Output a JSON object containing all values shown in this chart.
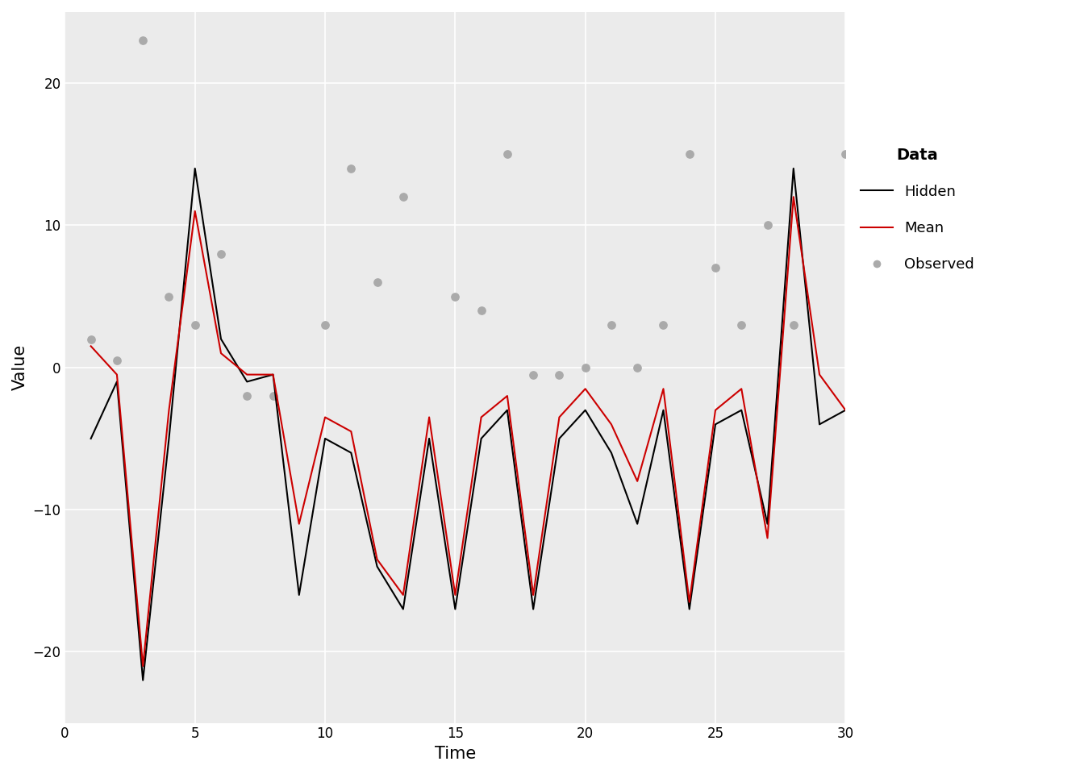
{
  "hidden_x": [
    1,
    2,
    3,
    4,
    5,
    6,
    7,
    8,
    9,
    10,
    11,
    12,
    13,
    14,
    15,
    16,
    17,
    18,
    19,
    20,
    21,
    22,
    23,
    24,
    25,
    26,
    27,
    28,
    29,
    30
  ],
  "hidden_y": [
    -5,
    -1,
    -22,
    -5,
    14,
    2,
    -1,
    -0.5,
    -16,
    -5,
    -6,
    -14,
    -17,
    -5,
    -17,
    -5,
    -3,
    -17,
    -5,
    -3,
    -6,
    -11,
    -3,
    -17,
    -4,
    -3,
    -11,
    14,
    -4,
    -3
  ],
  "mean_x": [
    1,
    2,
    3,
    4,
    5,
    6,
    7,
    8,
    9,
    10,
    11,
    12,
    13,
    14,
    15,
    16,
    17,
    18,
    19,
    20,
    21,
    22,
    23,
    24,
    25,
    26,
    27,
    28,
    29,
    30
  ],
  "mean_y": [
    1.5,
    -0.5,
    -21,
    -3,
    11,
    1,
    -0.5,
    -0.5,
    -11,
    -3.5,
    -4.5,
    -13.5,
    -16,
    -3.5,
    -16,
    -3.5,
    -2,
    -16,
    -3.5,
    -1.5,
    -4,
    -8,
    -1.5,
    -16.5,
    -3,
    -1.5,
    -12,
    12,
    -0.5,
    -3
  ],
  "obs_x": [
    1,
    2,
    3,
    4,
    5,
    6,
    7,
    8,
    10,
    11,
    12,
    13,
    15,
    16,
    17,
    18,
    19,
    20,
    21,
    22,
    23,
    24,
    25,
    26,
    27,
    28,
    30
  ],
  "obs_y": [
    2,
    0.5,
    23,
    5,
    3,
    8,
    -2,
    -2,
    3,
    14,
    6,
    12,
    5,
    4,
    15,
    -0.5,
    -0.5,
    0,
    3,
    0,
    3,
    15,
    7,
    3,
    10,
    3,
    15
  ],
  "xlabel": "Time",
  "ylabel": "Value",
  "legend_title": "Data",
  "hidden_color": "#000000",
  "mean_color": "#CC0000",
  "obs_color": "#AAAAAA",
  "bg_color": "#FFFFFF",
  "panel_bg": "#EBEBEB",
  "grid_color": "#FFFFFF",
  "xlim": [
    0,
    30
  ],
  "ylim": [
    -25,
    25
  ],
  "xticks": [
    0,
    5,
    10,
    15,
    20,
    25,
    30
  ],
  "yticks": [
    -20,
    -10,
    0,
    10,
    20
  ],
  "line_width": 1.5,
  "obs_size": 45,
  "axis_label_fontsize": 15,
  "tick_fontsize": 12,
  "legend_title_fontsize": 14,
  "legend_fontsize": 13
}
